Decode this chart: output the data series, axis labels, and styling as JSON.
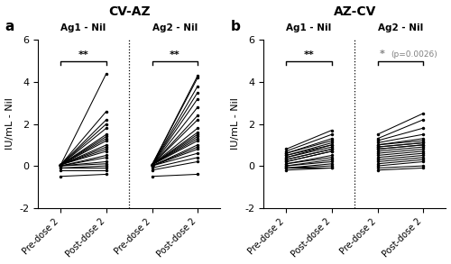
{
  "panel_a_title": "CV-AZ",
  "panel_b_title": "AZ-CV",
  "panel_a_label": "a",
  "panel_b_label": "b",
  "ylabel": "IU/mL - Nil",
  "ag1_label": "Ag1 - Nil",
  "ag2_label": "Ag2 - Nil",
  "xtick_labels": [
    "Pre-dose 2",
    "Post-dose 2"
  ],
  "ylim": [
    -2,
    6
  ],
  "yticks": [
    -2,
    0,
    2,
    4,
    6
  ],
  "sig_label_a1": "**",
  "sig_label_a2": "**",
  "sig_label_b1": "**",
  "sig_label_b2_star": "*",
  "sig_label_b2_pval": "(p=0.0026)",
  "cv_az_ag1_pre": [
    0.05,
    0.05,
    0.05,
    0.05,
    0.05,
    0.05,
    0.05,
    0.05,
    0.05,
    0.05,
    0.05,
    0.05,
    0.05,
    0.0,
    0.0,
    0.0,
    0.0,
    -0.1,
    -0.1,
    -0.2,
    -0.5
  ],
  "cv_az_ag1_post": [
    4.4,
    2.6,
    2.2,
    2.0,
    1.8,
    1.5,
    1.4,
    1.3,
    1.2,
    1.0,
    0.9,
    0.8,
    0.7,
    0.5,
    0.4,
    0.2,
    0.1,
    0.0,
    -0.1,
    -0.2,
    -0.4
  ],
  "cv_az_ag2_pre": [
    0.05,
    0.05,
    0.05,
    0.05,
    0.05,
    0.05,
    0.05,
    0.05,
    0.05,
    0.05,
    0.05,
    0.05,
    0.05,
    0.05,
    0.0,
    0.0,
    0.0,
    0.0,
    -0.1,
    -0.2,
    -0.5
  ],
  "cv_az_ag2_post": [
    4.3,
    4.2,
    3.8,
    3.5,
    3.2,
    2.8,
    2.4,
    2.2,
    1.8,
    1.6,
    1.5,
    1.4,
    1.3,
    1.2,
    1.0,
    0.9,
    0.8,
    0.6,
    0.4,
    0.2,
    -0.4
  ],
  "az_cv_ag1_pre": [
    0.8,
    0.7,
    0.6,
    0.6,
    0.5,
    0.5,
    0.4,
    0.4,
    0.3,
    0.3,
    0.2,
    0.2,
    0.1,
    0.1,
    0.0,
    0.0,
    -0.1,
    -0.1,
    -0.1,
    -0.2
  ],
  "az_cv_ag1_post": [
    1.7,
    1.5,
    1.3,
    1.2,
    1.1,
    1.0,
    1.0,
    0.9,
    0.8,
    0.8,
    0.7,
    0.7,
    0.5,
    0.4,
    0.3,
    0.2,
    0.1,
    0.0,
    -0.1,
    -0.1
  ],
  "az_cv_ag2_pre": [
    1.5,
    1.3,
    1.2,
    1.1,
    1.0,
    1.0,
    0.9,
    0.9,
    0.8,
    0.8,
    0.7,
    0.6,
    0.5,
    0.4,
    0.3,
    0.2,
    0.1,
    0.0,
    -0.1,
    -0.2
  ],
  "az_cv_ag2_post": [
    2.5,
    2.2,
    1.8,
    1.5,
    1.3,
    1.2,
    1.1,
    1.1,
    1.0,
    1.0,
    0.9,
    0.8,
    0.7,
    0.6,
    0.5,
    0.4,
    0.3,
    0.2,
    0.0,
    -0.1
  ],
  "line_color": "#000000",
  "marker_color": "#000000",
  "bg_color": "#ffffff",
  "marker_size": 2.5,
  "line_width": 0.75
}
